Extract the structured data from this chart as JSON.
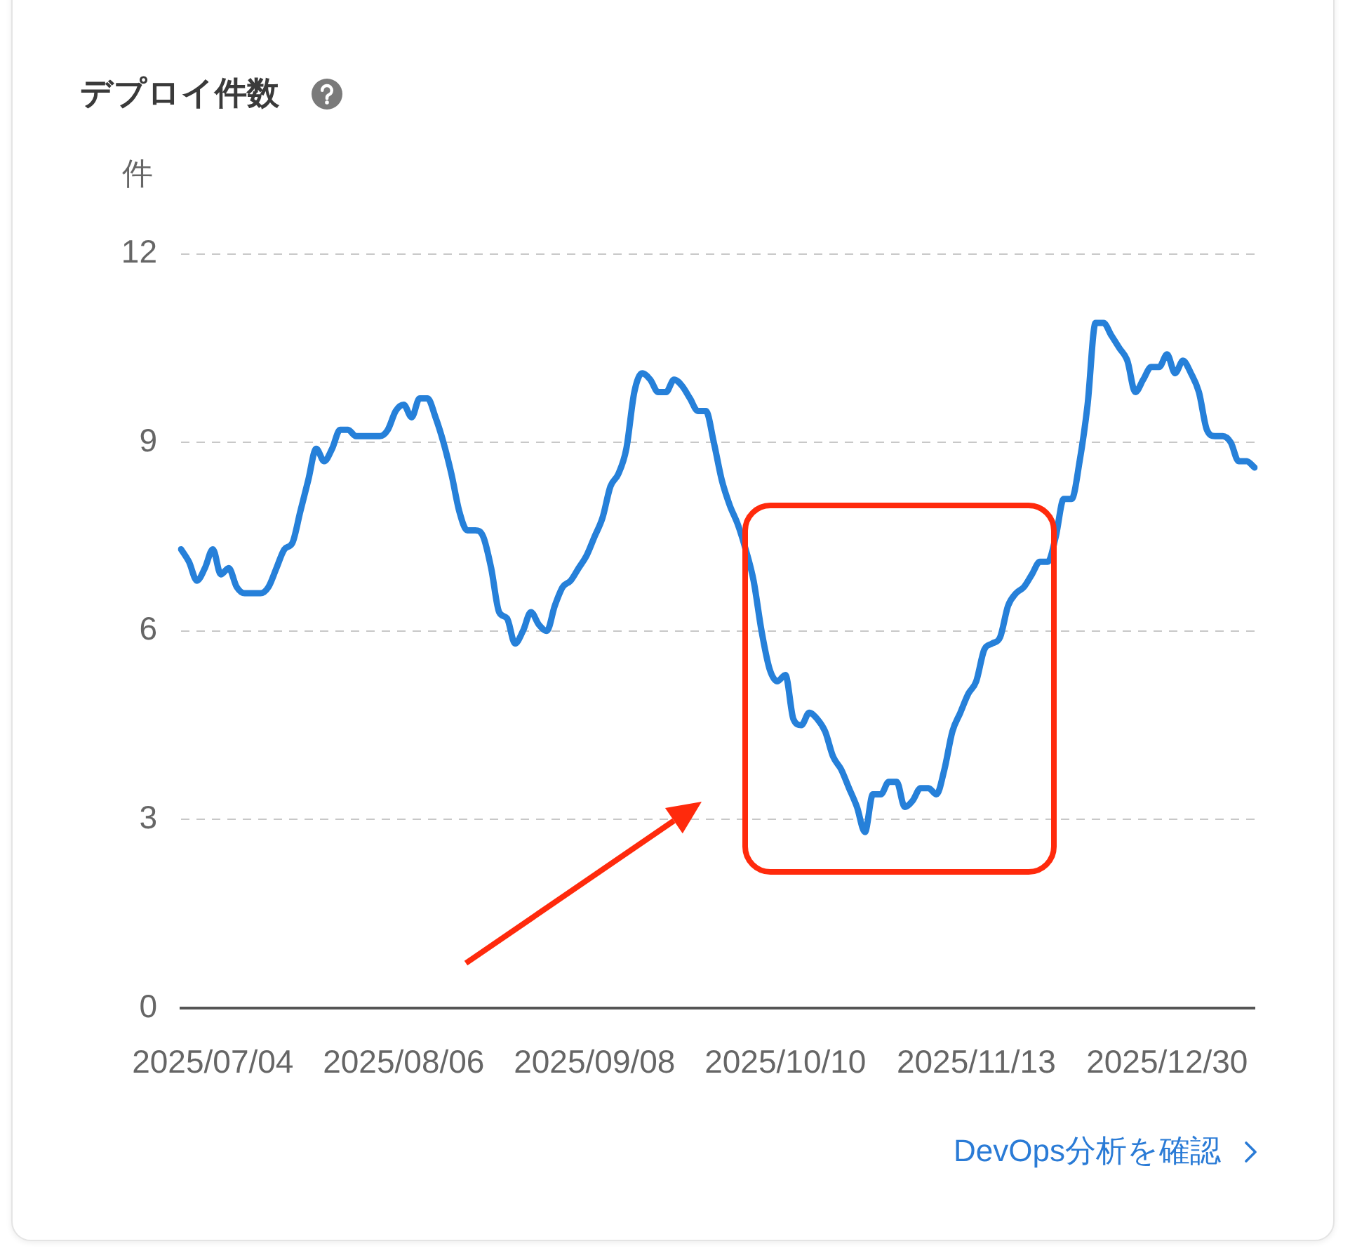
{
  "chart_data": {
    "type": "line",
    "title": "デプロイ件数",
    "ylabel": "件",
    "categories": [
      null,
      null,
      null,
      null,
      "2025/07/04",
      null,
      null,
      null,
      null,
      null,
      null,
      null,
      null,
      null,
      null,
      null,
      null,
      null,
      null,
      null,
      null,
      null,
      null,
      null,
      null,
      null,
      null,
      null,
      "2025/08/06",
      null,
      null,
      null,
      null,
      null,
      null,
      null,
      null,
      null,
      null,
      null,
      null,
      null,
      null,
      null,
      null,
      null,
      null,
      null,
      null,
      null,
      null,
      null,
      "2025/09/08",
      null,
      null,
      null,
      null,
      null,
      null,
      null,
      null,
      null,
      null,
      null,
      null,
      null,
      null,
      null,
      null,
      null,
      null,
      null,
      null,
      null,
      null,
      null,
      "2025/10/10",
      null,
      null,
      null,
      null,
      null,
      null,
      null,
      null,
      null,
      null,
      null,
      null,
      null,
      null,
      null,
      null,
      null,
      null,
      null,
      null,
      null,
      null,
      null,
      "2025/11/13",
      null,
      null,
      null,
      null,
      null,
      null,
      null,
      null,
      null,
      null,
      null,
      null,
      null,
      null,
      null,
      null,
      null,
      null,
      null,
      null,
      null,
      null,
      null,
      "2025/12/30",
      null,
      null,
      null,
      null,
      null,
      null,
      null,
      null,
      null,
      null,
      null
    ],
    "series": [
      {
        "color": "#2680d9",
        "values": [
          7.3,
          7.1,
          6.8,
          7.0,
          7.3,
          6.9,
          7.0,
          6.7,
          6.6,
          6.6,
          6.6,
          6.7,
          7.0,
          7.3,
          7.4,
          7.9,
          8.4,
          8.9,
          8.7,
          8.9,
          9.2,
          9.2,
          9.1,
          9.1,
          9.1,
          9.1,
          9.2,
          9.5,
          9.6,
          9.4,
          9.7,
          9.7,
          9.4,
          9.0,
          8.5,
          7.9,
          7.6,
          7.6,
          7.5,
          7.0,
          6.3,
          6.2,
          5.8,
          6.0,
          6.3,
          6.1,
          6.0,
          6.4,
          6.7,
          6.8,
          7.0,
          7.2,
          7.5,
          7.8,
          8.3,
          8.5,
          8.9,
          9.8,
          10.1,
          10.0,
          9.8,
          9.8,
          10.0,
          9.9,
          9.7,
          9.5,
          9.5,
          9.0,
          8.4,
          8.0,
          7.7,
          7.3,
          6.8,
          6.0,
          5.4,
          5.2,
          5.3,
          4.6,
          4.5,
          4.7,
          4.6,
          4.4,
          4.0,
          3.8,
          3.5,
          3.2,
          2.8,
          3.4,
          3.4,
          3.6,
          3.6,
          3.2,
          3.3,
          3.5,
          3.5,
          3.4,
          3.8,
          4.4,
          4.7,
          5.0,
          5.2,
          5.7,
          5.8,
          5.9,
          6.4,
          6.6,
          6.7,
          6.9,
          7.1,
          7.1,
          7.5,
          8.1,
          8.1,
          8.7,
          9.6,
          10.9,
          10.9,
          10.7,
          10.5,
          10.3,
          9.8,
          10.0,
          10.2,
          10.2,
          10.4,
          10.1,
          10.3,
          10.1,
          9.8,
          9.2,
          9.1,
          9.1,
          9.0,
          8.7,
          8.7,
          8.6
        ]
      }
    ],
    "ylim": [
      0,
      12
    ],
    "yticks": [
      0,
      3,
      6,
      9,
      12
    ],
    "grid": "y",
    "marker": "none",
    "line_style": "solid",
    "annotations": [
      "DevOps分析を確認"
    ]
  }
}
